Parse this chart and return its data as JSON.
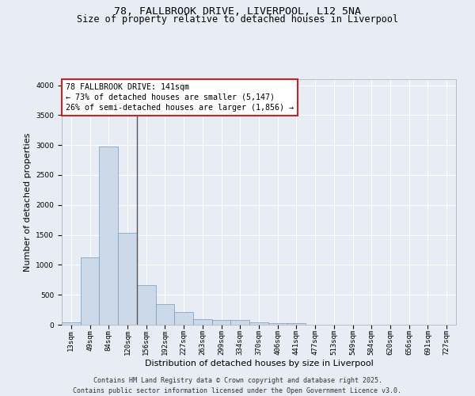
{
  "title_line1": "78, FALLBROOK DRIVE, LIVERPOOL, L12 5NA",
  "title_line2": "Size of property relative to detached houses in Liverpool",
  "xlabel": "Distribution of detached houses by size in Liverpool",
  "ylabel": "Number of detached properties",
  "bar_labels": [
    "13sqm",
    "49sqm",
    "84sqm",
    "120sqm",
    "156sqm",
    "192sqm",
    "227sqm",
    "263sqm",
    "299sqm",
    "334sqm",
    "370sqm",
    "406sqm",
    "441sqm",
    "477sqm",
    "513sqm",
    "549sqm",
    "584sqm",
    "620sqm",
    "656sqm",
    "691sqm",
    "727sqm"
  ],
  "bar_values": [
    40,
    1120,
    2980,
    1530,
    660,
    340,
    215,
    90,
    85,
    75,
    40,
    20,
    30,
    5,
    0,
    0,
    0,
    0,
    0,
    0,
    0
  ],
  "bar_color": "#ccd9e8",
  "bar_edge_color": "#7799bb",
  "vline_index": 3.5,
  "vline_color": "#555555",
  "annotation_title": "78 FALLBROOK DRIVE: 141sqm",
  "annotation_line2": "← 73% of detached houses are smaller (5,147)",
  "annotation_line3": "26% of semi-detached houses are larger (1,856) →",
  "annotation_box_edgecolor": "#cc2222",
  "ylim": [
    0,
    4100
  ],
  "yticks": [
    0,
    500,
    1000,
    1500,
    2000,
    2500,
    3000,
    3500,
    4000
  ],
  "bg_color": "#e8edf5",
  "plot_bg_color": "#e8edf5",
  "grid_color": "#ffffff",
  "footer_line1": "Contains HM Land Registry data © Crown copyright and database right 2025.",
  "footer_line2": "Contains public sector information licensed under the Open Government Licence v3.0.",
  "title_fontsize": 9.5,
  "subtitle_fontsize": 8.5,
  "axis_label_fontsize": 8,
  "tick_fontsize": 6.5,
  "annotation_fontsize": 7.2,
  "footer_fontsize": 6
}
